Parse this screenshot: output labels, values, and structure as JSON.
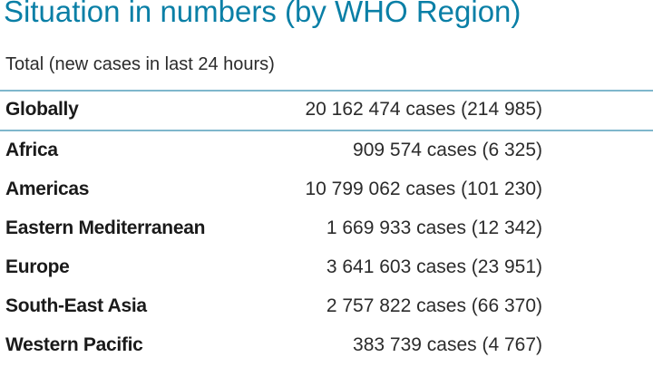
{
  "title": "Situation in numbers (by WHO Region)",
  "subtitle": "Total (new cases in last 24 hours)",
  "global": {
    "name": "Globally",
    "value": "20 162 474 cases (214 985)"
  },
  "regions": [
    {
      "name": "Africa",
      "value": "909 574 cases (6 325)"
    },
    {
      "name": "Americas",
      "value": "10 799 062 cases (101 230)"
    },
    {
      "name": "Eastern Mediterranean",
      "value": "1 669 933 cases (12 342)"
    },
    {
      "name": "Europe",
      "value": "3 641 603 cases (23 951)"
    },
    {
      "name": "South-East Asia",
      "value": "2 757 822 cases (66 370)"
    },
    {
      "name": "Western Pacific",
      "value": "383 739 cases (4 767)"
    }
  ],
  "colors": {
    "title": "#0a7fa6",
    "rule": "#7fb7cc"
  }
}
